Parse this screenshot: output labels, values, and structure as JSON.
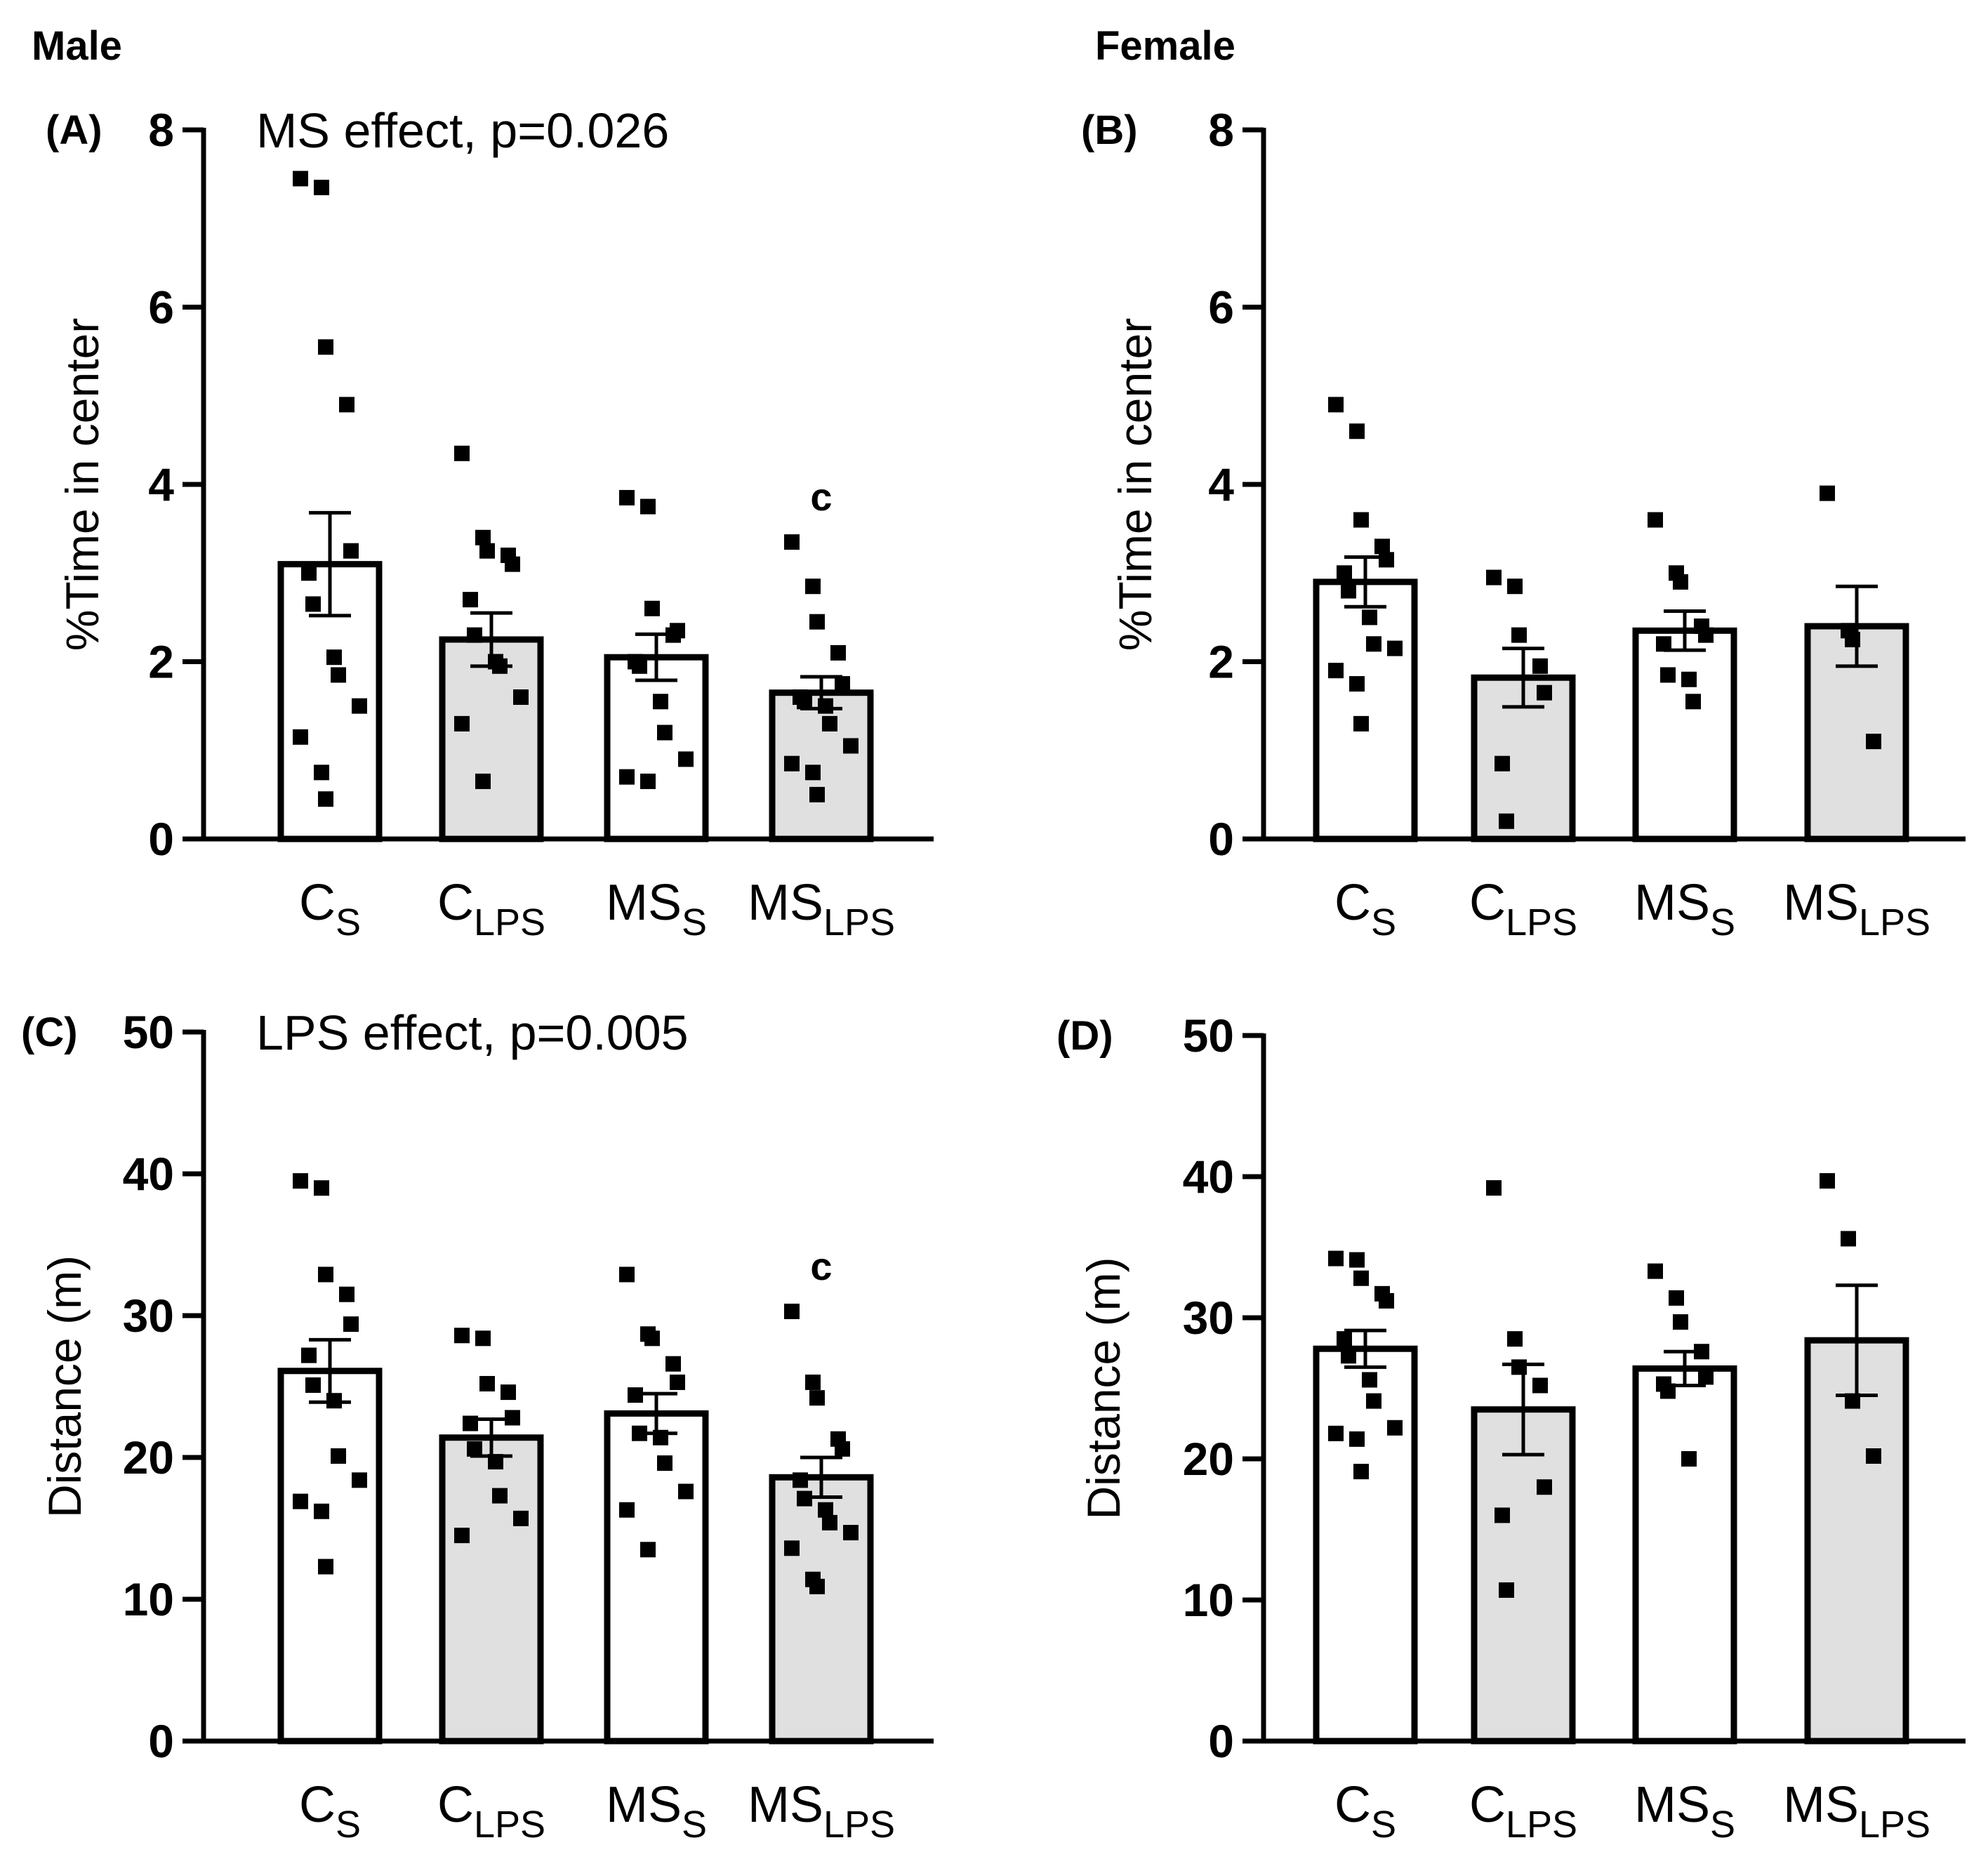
{
  "figure": {
    "sex_labels": {
      "male": "Male",
      "female": "Female"
    }
  },
  "palette": {
    "saline_fill": "#ffffff",
    "lps_fill": "#e0e0e0",
    "ink": "#000000"
  },
  "chart_data": [
    {
      "panel": "(A)",
      "type": "bar",
      "title": "",
      "annotation": "MS effect, p=0.026",
      "ylabel": "%Time in center",
      "ylim": [
        0,
        8
      ],
      "yticks": [
        0,
        2,
        4,
        6,
        8
      ],
      "categories": [
        {
          "main": "C",
          "sub": "S"
        },
        {
          "main": "C",
          "sub": "LPS"
        },
        {
          "main": "MS",
          "sub": "S"
        },
        {
          "main": "MS",
          "sub": "LPS"
        }
      ],
      "groups": [
        "saline",
        "lps",
        "saline",
        "lps"
      ],
      "means": [
        3.1,
        2.25,
        2.05,
        1.65
      ],
      "sem": [
        0.58,
        0.3,
        0.26,
        0.18
      ],
      "sig_marks": [
        "",
        "",
        "",
        "c"
      ],
      "points": [
        [
          7.45,
          7.35,
          5.55,
          4.9,
          3.25,
          3.0,
          2.65,
          2.05,
          1.85,
          1.5,
          1.15,
          0.75,
          0.45
        ],
        [
          4.35,
          3.4,
          3.25,
          3.2,
          3.1,
          2.7,
          2.3,
          2.0,
          1.95,
          1.6,
          1.3,
          0.65
        ],
        [
          3.85,
          3.75,
          2.6,
          2.3,
          2.35,
          2.0,
          1.95,
          1.55,
          1.2,
          0.9,
          0.7,
          0.65
        ],
        [
          3.35,
          2.85,
          2.45,
          2.1,
          1.75,
          1.6,
          1.55,
          1.5,
          1.3,
          1.05,
          0.85,
          0.75,
          0.5
        ]
      ]
    },
    {
      "panel": "(B)",
      "type": "bar",
      "title": "",
      "annotation": "",
      "ylabel": "%Time in center",
      "ylim": [
        0,
        8
      ],
      "yticks": [
        0,
        2,
        4,
        6,
        8
      ],
      "categories": [
        {
          "main": "C",
          "sub": "S"
        },
        {
          "main": "C",
          "sub": "LPS"
        },
        {
          "main": "MS",
          "sub": "S"
        },
        {
          "main": "MS",
          "sub": "LPS"
        }
      ],
      "groups": [
        "saline",
        "lps",
        "saline",
        "lps"
      ],
      "means": [
        2.9,
        1.82,
        2.35,
        2.4
      ],
      "sem": [
        0.28,
        0.33,
        0.22,
        0.45
      ],
      "sig_marks": [
        "",
        "",
        "",
        ""
      ],
      "points": [
        [
          4.9,
          4.6,
          3.6,
          3.3,
          3.15,
          3.0,
          2.8,
          2.5,
          2.2,
          2.15,
          1.9,
          1.75,
          1.3
        ],
        [
          2.95,
          2.85,
          2.3,
          1.95,
          1.65,
          0.85,
          0.2
        ],
        [
          3.6,
          3.0,
          2.9,
          2.4,
          2.3,
          2.2,
          1.85,
          1.8,
          1.55
        ],
        [
          3.9,
          2.35,
          2.25,
          1.1
        ]
      ]
    },
    {
      "panel": "(C)",
      "type": "bar",
      "title": "",
      "annotation": "LPS effect, p=0.005",
      "ylabel": "Distance (m)",
      "ylim": [
        0,
        50
      ],
      "yticks": [
        0,
        10,
        20,
        30,
        40,
        50
      ],
      "categories": [
        {
          "main": "C",
          "sub": "S"
        },
        {
          "main": "C",
          "sub": "LPS"
        },
        {
          "main": "MS",
          "sub": "S"
        },
        {
          "main": "MS",
          "sub": "LPS"
        }
      ],
      "groups": [
        "saline",
        "lps",
        "saline",
        "lps"
      ],
      "means": [
        26.1,
        21.4,
        23.1,
        18.6
      ],
      "sem": [
        2.2,
        1.3,
        1.4,
        1.4
      ],
      "sig_marks": [
        "",
        "",
        "",
        "c"
      ],
      "points": [
        [
          39.5,
          39.0,
          32.9,
          31.5,
          29.4,
          27.2,
          25.1,
          24.0,
          20.1,
          18.4,
          16.9,
          16.2,
          12.3
        ],
        [
          28.6,
          28.4,
          25.2,
          24.6,
          22.8,
          22.4,
          20.6,
          19.7,
          17.3,
          15.7,
          14.5
        ],
        [
          32.9,
          28.7,
          28.4,
          26.6,
          25.3,
          24.4,
          21.7,
          21.4,
          19.6,
          17.6,
          16.3,
          13.5
        ],
        [
          30.3,
          25.3,
          24.2,
          21.3,
          20.6,
          18.4,
          17.1,
          16.3,
          15.4,
          14.7,
          13.6,
          11.4,
          10.9
        ]
      ]
    },
    {
      "panel": "(D)",
      "type": "bar",
      "title": "",
      "annotation": "",
      "ylabel": "Distance (m)",
      "ylim": [
        0,
        50
      ],
      "yticks": [
        0,
        10,
        20,
        30,
        40,
        50
      ],
      "categories": [
        {
          "main": "C",
          "sub": "S"
        },
        {
          "main": "C",
          "sub": "LPS"
        },
        {
          "main": "MS",
          "sub": "S"
        },
        {
          "main": "MS",
          "sub": "LPS"
        }
      ],
      "groups": [
        "saline",
        "lps",
        "saline",
        "lps"
      ],
      "means": [
        27.8,
        23.5,
        26.4,
        28.4
      ],
      "sem": [
        1.3,
        3.2,
        1.2,
        3.9
      ],
      "sig_marks": [
        "",
        "",
        "",
        ""
      ],
      "points": [
        [
          34.2,
          34.1,
          32.8,
          31.7,
          31.2,
          28.5,
          27.3,
          25.6,
          24.1,
          22.2,
          21.8,
          21.4,
          19.1
        ],
        [
          39.2,
          28.5,
          26.5,
          25.2,
          18.0,
          16.0,
          10.7
        ],
        [
          33.3,
          31.4,
          29.7,
          27.6,
          25.8,
          25.3,
          24.8,
          20.0
        ],
        [
          39.7,
          35.6,
          24.1,
          20.2
        ]
      ]
    }
  ]
}
